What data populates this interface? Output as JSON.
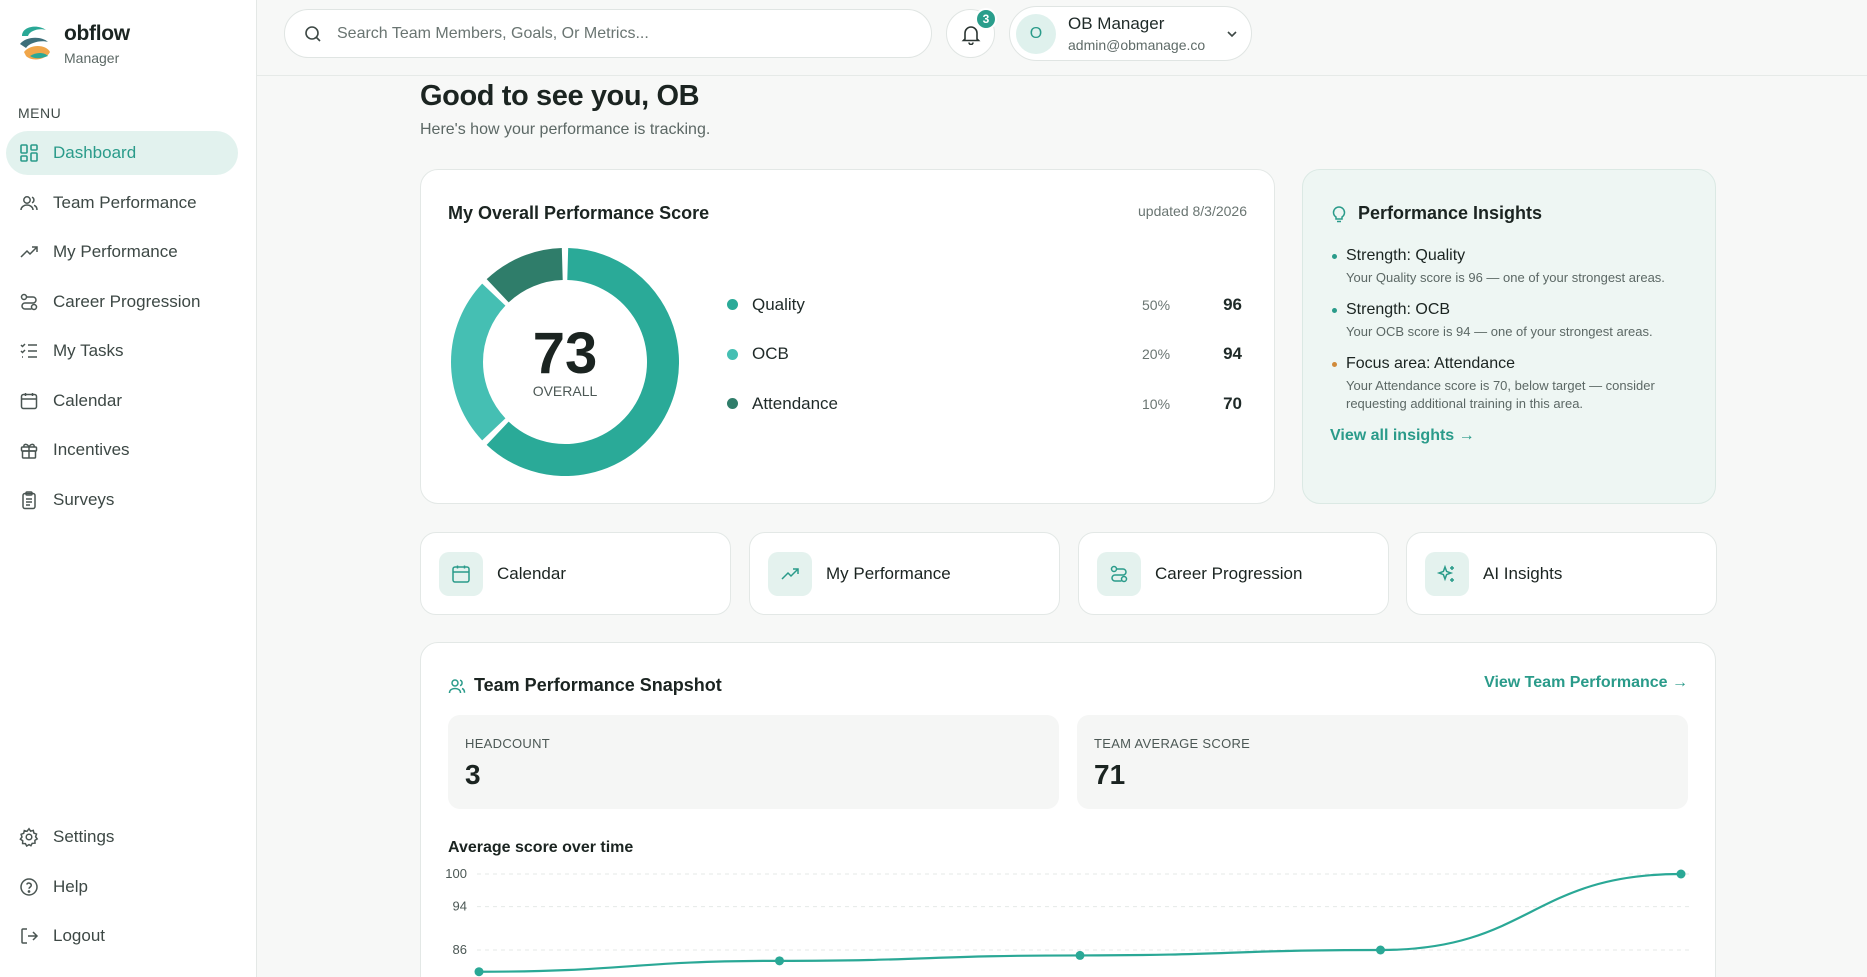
{
  "brand": {
    "name": "obflow",
    "subtitle": "Manager"
  },
  "sidebar": {
    "menu_label": "MENU",
    "items": [
      {
        "label": "Dashboard",
        "icon": "dashboard-icon",
        "active": true
      },
      {
        "label": "Team Performance",
        "icon": "users-icon"
      },
      {
        "label": "My Performance",
        "icon": "trending-up-icon"
      },
      {
        "label": "Career Progression",
        "icon": "route-icon"
      },
      {
        "label": "My Tasks",
        "icon": "checklist-icon"
      },
      {
        "label": "Calendar",
        "icon": "calendar-icon"
      },
      {
        "label": "Incentives",
        "icon": "gift-icon"
      },
      {
        "label": "Surveys",
        "icon": "clipboard-icon"
      }
    ],
    "bottom_items": [
      {
        "label": "Settings",
        "icon": "gear-icon"
      },
      {
        "label": "Help",
        "icon": "help-icon"
      },
      {
        "label": "Logout",
        "icon": "logout-icon"
      }
    ]
  },
  "topbar": {
    "search_placeholder": "Search Team Members, Goals, Or Metrics...",
    "notification_count": "3",
    "user": {
      "initial": "O",
      "name": "OB Manager",
      "email": "admin@obmanage.co"
    }
  },
  "greeting": {
    "title": "Good to see you, OB",
    "subtitle": "Here's how your performance is tracking."
  },
  "score_card": {
    "title": "My Overall Performance Score",
    "updated": "updated 8/3/2026",
    "overall_value": "73",
    "overall_label": "OVERALL",
    "components": [
      {
        "name": "Quality",
        "weight": "50%",
        "score": "96",
        "color": "#2aaa98"
      },
      {
        "name": "OCB",
        "weight": "20%",
        "score": "94",
        "color": "#45bfb3"
      },
      {
        "name": "Attendance",
        "weight": "10%",
        "score": "70",
        "color": "#2f7d6a"
      }
    ]
  },
  "insights": {
    "title": "Performance Insights",
    "items": [
      {
        "title": "Strength: Quality",
        "desc": "Your Quality score is 96 — one of your strongest areas.",
        "color": "#2a9b8a"
      },
      {
        "title": "Strength: OCB",
        "desc": "Your OCB score is 94 — one of your strongest areas.",
        "color": "#2a9b8a"
      },
      {
        "title": "Focus area: Attendance",
        "desc": "Your Attendance score is 70, below target — consider requesting additional training in this area.",
        "color": "#d08a3a"
      }
    ],
    "link": "View all insights →"
  },
  "quick_links": [
    {
      "label": "Calendar",
      "icon": "calendar-icon"
    },
    {
      "label": "My Performance",
      "icon": "trending-up-icon"
    },
    {
      "label": "Career Progression",
      "icon": "route-icon"
    },
    {
      "label": "AI Insights",
      "icon": "sparkles-icon"
    }
  ],
  "team": {
    "title": "Team Performance Snapshot",
    "link": "View Team Performance →",
    "headcount_label": "HEADCOUNT",
    "headcount": "3",
    "avg_label": "TEAM AVERAGE SCORE",
    "avg": "71",
    "chart_title": "Average score over time"
  },
  "chart_data": {
    "type": "line",
    "title": "Average score over time",
    "y_ticks": [
      "100",
      "94",
      "86"
    ],
    "series": [
      {
        "values": [
          82,
          84,
          85,
          86,
          100
        ]
      }
    ],
    "accent": "#2aa896"
  }
}
